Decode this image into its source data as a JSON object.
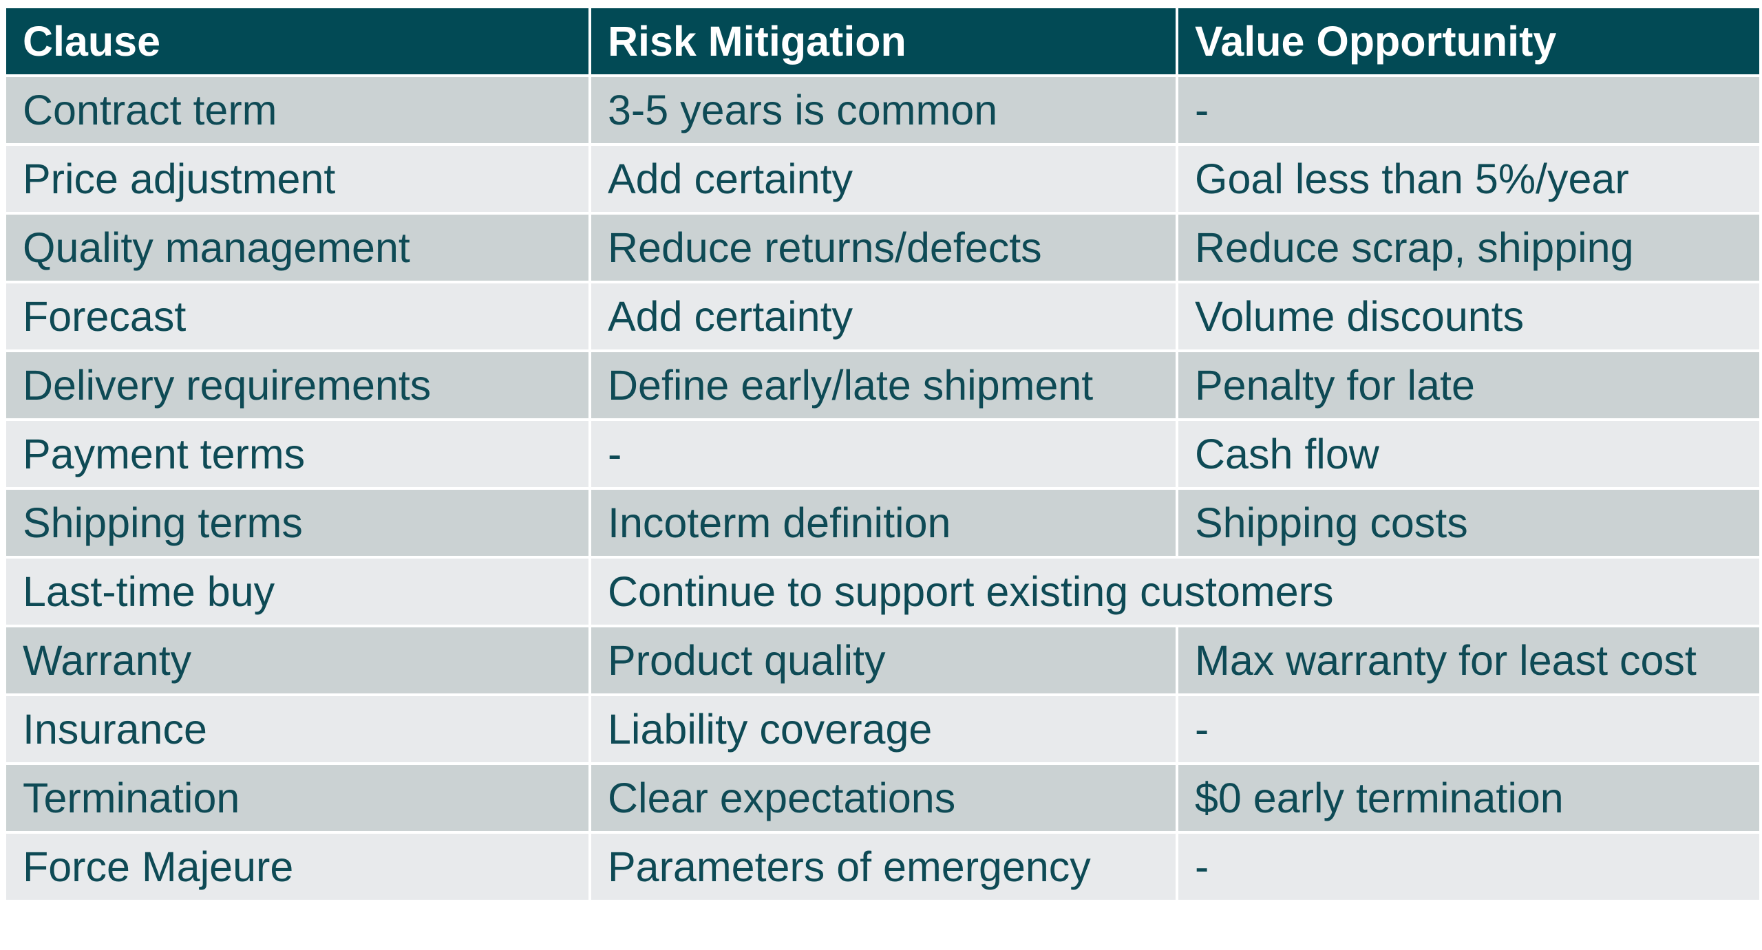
{
  "colors": {
    "header_bg": "#024a55",
    "header_text": "#ffffff",
    "body_text": "#0e4a55",
    "row_dark": "#cbd2d3",
    "row_light": "#e8eaec"
  },
  "table": {
    "headers": [
      "Clause",
      "Risk Mitigation",
      "Value Opportunity"
    ],
    "rows": [
      [
        "Contract term",
        "3-5 years is common",
        "-"
      ],
      [
        "Price adjustment",
        "Add certainty",
        "Goal less than 5%/year"
      ],
      [
        "Quality management",
        "Reduce returns/defects",
        "Reduce scrap, shipping"
      ],
      [
        "Forecast",
        "Add certainty",
        "Volume discounts"
      ],
      [
        "Delivery requirements",
        "Define early/late shipment",
        "Penalty for late"
      ],
      [
        "Payment terms",
        "-",
        "Cash flow"
      ],
      [
        "Shipping terms",
        "Incoterm definition",
        "Shipping costs"
      ],
      [
        "Last-time buy",
        "Continue to support existing customers"
      ],
      [
        "Warranty",
        "Product quality",
        "Max warranty for least cost"
      ],
      [
        "Insurance",
        "Liability coverage",
        "-"
      ],
      [
        "Termination",
        "Clear expectations",
        "$0 early termination"
      ],
      [
        "Force Majeure",
        "Parameters of emergency",
        "-"
      ]
    ]
  }
}
